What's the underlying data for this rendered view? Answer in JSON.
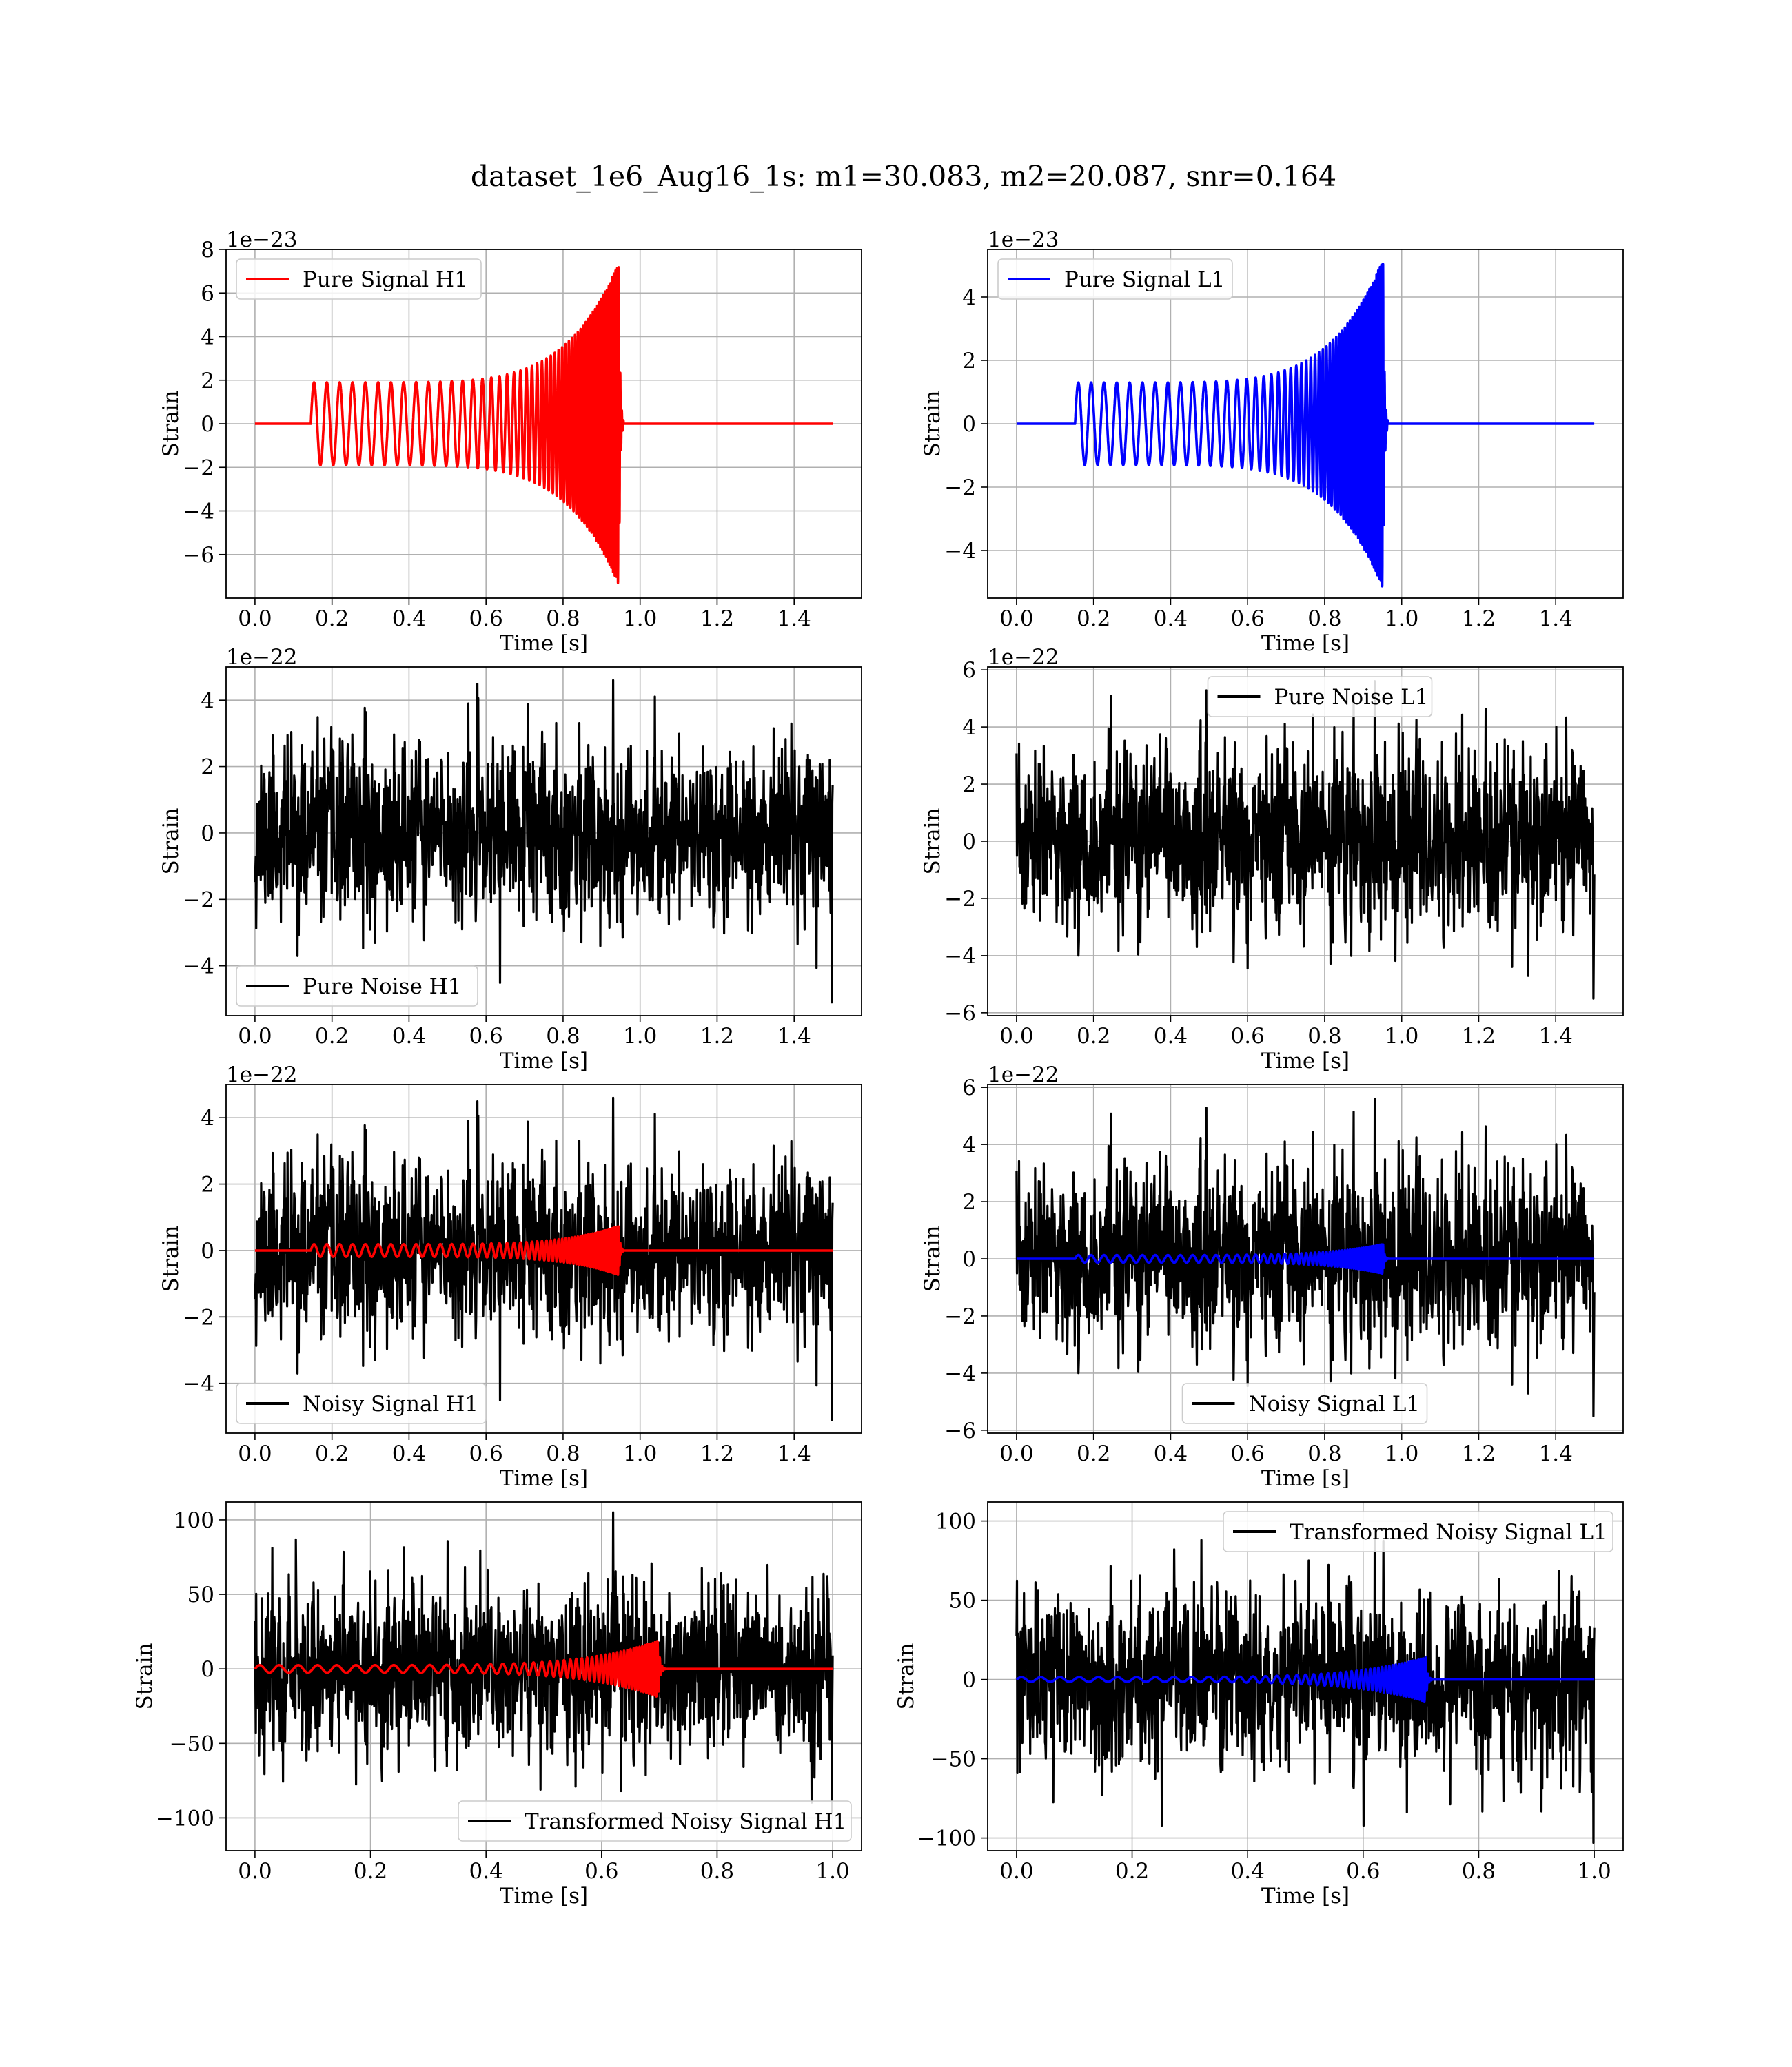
{
  "figure_title": "dataset_1e6_Aug16_1s: m1=30.083, m2=20.087, snr=0.164",
  "colors": {
    "h1_signal": "#ff0000",
    "l1_signal": "#0000ff",
    "noise": "#000000",
    "grid": "#b0b0b0"
  },
  "chart_data": [
    {
      "type": "line",
      "id": "pure-signal-h1",
      "xlabel": "Time [s]",
      "ylabel": "Strain",
      "offset_text": "1e−23",
      "xlim": [
        -0.075,
        1.575
      ],
      "ylim": [
        -8,
        8
      ],
      "xticks": [
        0.0,
        0.2,
        0.4,
        0.6,
        0.8,
        1.0,
        1.2,
        1.4
      ],
      "xticklabels": [
        "0.0",
        "0.2",
        "0.4",
        "0.6",
        "0.8",
        "1.0",
        "1.2",
        "1.4"
      ],
      "yticks": [
        -6,
        -4,
        -2,
        0,
        2,
        4,
        6,
        8
      ],
      "yticklabels": [
        "−6",
        "−4",
        "−2",
        "0",
        "2",
        "4",
        "6",
        "8"
      ],
      "grid": true,
      "legend_position": "upper left",
      "series": [
        {
          "name": "Pure Signal H1",
          "kind": "chirp",
          "color": "#ff0000",
          "params": {
            "t_start": 0.145,
            "t_merge": 0.945,
            "t_end": 1.5,
            "amp_start": 1.9,
            "amp_peak": 7.4,
            "f_start": 30,
            "f_end": 250
          }
        }
      ]
    },
    {
      "type": "line",
      "id": "pure-signal-l1",
      "xlabel": "Time [s]",
      "ylabel": "Strain",
      "offset_text": "1e−23",
      "xlim": [
        -0.075,
        1.575
      ],
      "ylim": [
        -5.5,
        5.5
      ],
      "xticks": [
        0.0,
        0.2,
        0.4,
        0.6,
        0.8,
        1.0,
        1.2,
        1.4
      ],
      "xticklabels": [
        "0.0",
        "0.2",
        "0.4",
        "0.6",
        "0.8",
        "1.0",
        "1.2",
        "1.4"
      ],
      "yticks": [
        -4,
        -2,
        0,
        2,
        4
      ],
      "yticklabels": [
        "−4",
        "−2",
        "0",
        "2",
        "4"
      ],
      "grid": true,
      "legend_position": "upper left",
      "series": [
        {
          "name": "Pure Signal L1",
          "kind": "chirp",
          "color": "#0000ff",
          "params": {
            "t_start": 0.152,
            "t_merge": 0.952,
            "t_end": 1.5,
            "amp_start": 1.3,
            "amp_peak": 5.2,
            "f_start": 30,
            "f_end": 250
          }
        }
      ]
    },
    {
      "type": "line",
      "id": "pure-noise-h1",
      "xlabel": "Time [s]",
      "ylabel": "Strain",
      "offset_text": "1e−22",
      "xlim": [
        -0.075,
        1.575
      ],
      "ylim": [
        -5.5,
        5.0
      ],
      "xticks": [
        0.0,
        0.2,
        0.4,
        0.6,
        0.8,
        1.0,
        1.2,
        1.4
      ],
      "xticklabels": [
        "0.0",
        "0.2",
        "0.4",
        "0.6",
        "0.8",
        "1.0",
        "1.2",
        "1.4"
      ],
      "yticks": [
        -4,
        -2,
        0,
        2,
        4
      ],
      "yticklabels": [
        "−4",
        "−2",
        "0",
        "2",
        "4"
      ],
      "grid": true,
      "legend_position": "lower left",
      "series": [
        {
          "name": "Pure Noise H1",
          "kind": "noise",
          "color": "#000000",
          "params": {
            "t_start": 0.0,
            "t_end": 1.5,
            "max": 4.6,
            "min": -5.1,
            "std": 1.3,
            "seed": 11
          }
        }
      ]
    },
    {
      "type": "line",
      "id": "pure-noise-l1",
      "xlabel": "Time [s]",
      "ylabel": "Strain",
      "offset_text": "1e−22",
      "xlim": [
        -0.075,
        1.575
      ],
      "ylim": [
        -6.1,
        6.1
      ],
      "xticks": [
        0.0,
        0.2,
        0.4,
        0.6,
        0.8,
        1.0,
        1.2,
        1.4
      ],
      "xticklabels": [
        "0.0",
        "0.2",
        "0.4",
        "0.6",
        "0.8",
        "1.0",
        "1.2",
        "1.4"
      ],
      "yticks": [
        -6,
        -4,
        -2,
        0,
        2,
        4,
        6
      ],
      "yticklabels": [
        "−6",
        "−4",
        "−2",
        "0",
        "2",
        "4",
        "6"
      ],
      "grid": true,
      "legend_position": "upper center",
      "series": [
        {
          "name": "Pure Noise L1",
          "kind": "noise",
          "color": "#000000",
          "params": {
            "t_start": 0.0,
            "t_end": 1.5,
            "max": 5.6,
            "min": -5.5,
            "std": 1.55,
            "seed": 23
          }
        }
      ]
    },
    {
      "type": "line",
      "id": "noisy-signal-h1",
      "xlabel": "Time [s]",
      "ylabel": "Strain",
      "offset_text": "1e−22",
      "xlim": [
        -0.075,
        1.575
      ],
      "ylim": [
        -5.5,
        5.0
      ],
      "xticks": [
        0.0,
        0.2,
        0.4,
        0.6,
        0.8,
        1.0,
        1.2,
        1.4
      ],
      "xticklabels": [
        "0.0",
        "0.2",
        "0.4",
        "0.6",
        "0.8",
        "1.0",
        "1.2",
        "1.4"
      ],
      "yticks": [
        -4,
        -2,
        0,
        2,
        4
      ],
      "yticklabels": [
        "−4",
        "−2",
        "0",
        "2",
        "4"
      ],
      "grid": true,
      "legend_position": "lower left",
      "series": [
        {
          "name": "Noisy Signal H1",
          "kind": "noise",
          "color": "#000000",
          "params": {
            "t_start": 0.0,
            "t_end": 1.5,
            "max": 4.6,
            "min": -5.1,
            "std": 1.3,
            "seed": 11
          }
        },
        {
          "name": "",
          "kind": "chirp",
          "color": "#ff0000",
          "params": {
            "t_start": 0.145,
            "t_merge": 0.945,
            "t_end": 1.5,
            "t_begin": 0.0,
            "amp_start": 0.19,
            "amp_peak": 0.74,
            "f_start": 30,
            "f_end": 250
          }
        }
      ]
    },
    {
      "type": "line",
      "id": "noisy-signal-l1",
      "xlabel": "Time [s]",
      "ylabel": "Strain",
      "offset_text": "1e−22",
      "xlim": [
        -0.075,
        1.575
      ],
      "ylim": [
        -6.1,
        6.1
      ],
      "xticks": [
        0.0,
        0.2,
        0.4,
        0.6,
        0.8,
        1.0,
        1.2,
        1.4
      ],
      "xticklabels": [
        "0.0",
        "0.2",
        "0.4",
        "0.6",
        "0.8",
        "1.0",
        "1.2",
        "1.4"
      ],
      "yticks": [
        -6,
        -4,
        -2,
        0,
        2,
        4,
        6
      ],
      "yticklabels": [
        "−6",
        "−4",
        "−2",
        "0",
        "2",
        "4",
        "6"
      ],
      "grid": true,
      "legend_position": "lower center",
      "series": [
        {
          "name": "Noisy Signal L1",
          "kind": "noise",
          "color": "#000000",
          "params": {
            "t_start": 0.0,
            "t_end": 1.5,
            "max": 5.6,
            "min": -5.5,
            "std": 1.55,
            "seed": 23
          }
        },
        {
          "name": "",
          "kind": "chirp",
          "color": "#0000ff",
          "params": {
            "t_start": 0.152,
            "t_merge": 0.952,
            "t_end": 1.5,
            "t_begin": 0.0,
            "amp_start": 0.13,
            "amp_peak": 0.52,
            "f_start": 30,
            "f_end": 250
          }
        }
      ]
    },
    {
      "type": "line",
      "id": "transformed-noisy-signal-h1",
      "xlabel": "Time [s]",
      "ylabel": "Strain",
      "offset_text": "",
      "xlim": [
        -0.05,
        1.05
      ],
      "ylim": [
        -122,
        112
      ],
      "xticks": [
        0.0,
        0.2,
        0.4,
        0.6,
        0.8,
        1.0
      ],
      "xticklabels": [
        "0.0",
        "0.2",
        "0.4",
        "0.6",
        "0.8",
        "1.0"
      ],
      "yticks": [
        -100,
        -50,
        0,
        50,
        100
      ],
      "yticklabels": [
        "−100",
        "−50",
        "0",
        "50",
        "100"
      ],
      "grid": true,
      "legend_position": "lower right",
      "series": [
        {
          "name": "Transformed Noisy Signal H1",
          "kind": "noise",
          "color": "#000000",
          "params": {
            "t_start": 0.0,
            "t_end": 1.0,
            "max": 105,
            "min": -96,
            "std": 28,
            "seed": 37
          }
        },
        {
          "name": "",
          "kind": "chirp",
          "color": "#ff0000",
          "params": {
            "t_start": 0.0,
            "t_merge": 0.698,
            "t_end": 1.0,
            "t_begin": 0.0,
            "amp_start": 2.5,
            "amp_peak": 19,
            "f_start": 30,
            "f_end": 250
          }
        }
      ]
    },
    {
      "type": "line",
      "id": "transformed-noisy-signal-l1",
      "xlabel": "Time [s]",
      "ylabel": "Strain",
      "offset_text": "",
      "xlim": [
        -0.05,
        1.05
      ],
      "ylim": [
        -108,
        112
      ],
      "xticks": [
        0.0,
        0.2,
        0.4,
        0.6,
        0.8,
        1.0
      ],
      "xticklabels": [
        "0.0",
        "0.2",
        "0.4",
        "0.6",
        "0.8",
        "1.0"
      ],
      "yticks": [
        -100,
        -50,
        0,
        50,
        100
      ],
      "yticklabels": [
        "−100",
        "−50",
        "0",
        "50",
        "100"
      ],
      "grid": true,
      "legend_position": "upper right",
      "series": [
        {
          "name": "Transformed Noisy Signal L1",
          "kind": "noise",
          "color": "#000000",
          "params": {
            "t_start": 0.0,
            "t_end": 1.0,
            "max": 93,
            "min": -103,
            "std": 27,
            "seed": 53
          }
        },
        {
          "name": "",
          "kind": "chirp",
          "color": "#0000ff",
          "params": {
            "t_start": 0.0,
            "t_merge": 0.708,
            "t_end": 1.0,
            "t_begin": 0.0,
            "amp_start": 1.5,
            "amp_peak": 14,
            "f_start": 30,
            "f_end": 250
          }
        }
      ]
    }
  ]
}
